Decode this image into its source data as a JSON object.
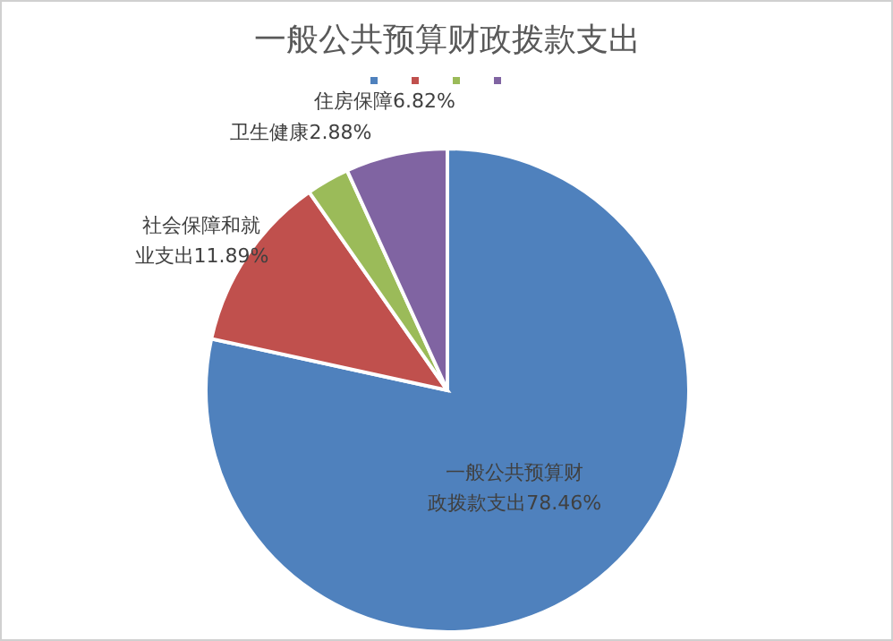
{
  "chart_data": {
    "type": "pie",
    "title": "一般公共预算财政拨款支出",
    "categories": [
      "一般公共预算财政拨款支出",
      "社会保障和就业支出",
      "卫生健康",
      "住房保障"
    ],
    "values": [
      78.46,
      11.89,
      2.88,
      6.82
    ],
    "value_labels": [
      "78.46%",
      "11.89%",
      "2.88%",
      "6.82%"
    ],
    "colors": [
      "#4f81bd",
      "#c0504d",
      "#9bbb59",
      "#8064a2"
    ]
  }
}
